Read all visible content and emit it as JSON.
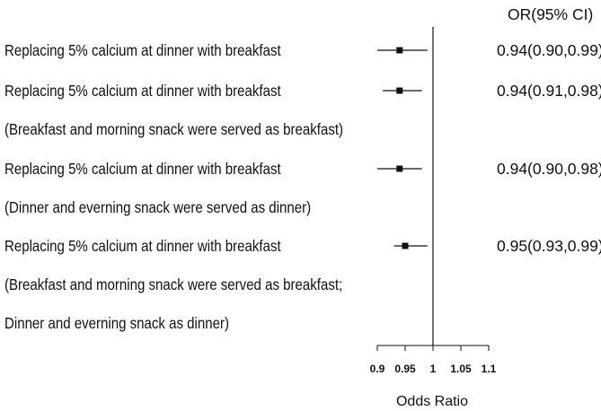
{
  "chart_data": {
    "type": "forest",
    "header": "OR(95% CI)",
    "xlabel": "Odds Ratio",
    "xlim": [
      0.9,
      1.1
    ],
    "xticks": [
      0.9,
      0.95,
      1,
      1.05,
      1.1
    ],
    "xtick_labels": [
      "0.9",
      "0.95",
      "1",
      "1.05",
      "1.1"
    ],
    "reference_line": 1,
    "rows": [
      {
        "label_lines": [
          "Replacing 5% calcium at dinner with breakfast"
        ],
        "or": 0.94,
        "lower": 0.9,
        "upper": 0.99,
        "ci_text": "0.94(0.90,0.99)"
      },
      {
        "label_lines": [
          "Replacing 5% calcium at dinner with breakfast",
          "(Breakfast and morning snack were served as breakfast)"
        ],
        "or": 0.94,
        "lower": 0.91,
        "upper": 0.98,
        "ci_text": "0.94(0.91,0.98)"
      },
      {
        "label_lines": [
          "Replacing 5% calcium at dinner with breakfast",
          "(Dinner and everning snack were served as dinner)"
        ],
        "or": 0.94,
        "lower": 0.9,
        "upper": 0.98,
        "ci_text": "0.94(0.90,0.98)"
      },
      {
        "label_lines": [
          "Replacing 5% calcium at dinner with breakfast",
          "(Breakfast and morning snack were served as breakfast;",
          "Dinner and everning snack as dinner)"
        ],
        "or": 0.95,
        "lower": 0.93,
        "upper": 0.99,
        "ci_text": "0.95(0.93,0.99)"
      }
    ]
  }
}
